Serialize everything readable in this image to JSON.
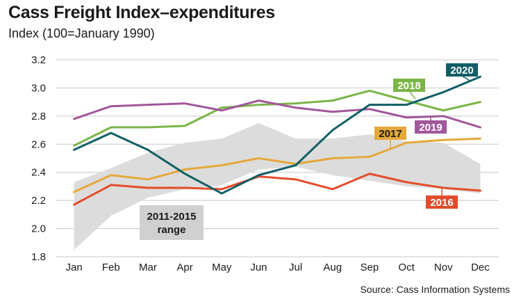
{
  "chart_data": {
    "type": "line",
    "title": "Cass Freight Index–expenditures",
    "subtitle": "Index (100=January 1990)",
    "source": "Source: Cass Information Systems",
    "categories": [
      "Jan",
      "Feb",
      "Mar",
      "Apr",
      "May",
      "Jun",
      "Jul",
      "Aug",
      "Sep",
      "Oct",
      "Nov",
      "Dec"
    ],
    "y_ticks": [
      "1.8",
      "2.0",
      "2.2",
      "2.4",
      "2.6",
      "2.8",
      "3.0",
      "3.2"
    ],
    "ylim": [
      1.8,
      3.2
    ],
    "grid": true,
    "range_band": {
      "label_line1": "2011-2015",
      "label_line2": "range",
      "lower": [
        1.85,
        2.09,
        2.22,
        2.28,
        2.31,
        2.42,
        2.44,
        2.38,
        2.34,
        2.3,
        2.28,
        2.25
      ],
      "upper": [
        2.33,
        2.43,
        2.54,
        2.61,
        2.64,
        2.75,
        2.64,
        2.64,
        2.67,
        2.62,
        2.61,
        2.46
      ],
      "color": "#dcdcdc"
    },
    "series": [
      {
        "name": "2016",
        "color": "#e34c2a",
        "values": [
          2.17,
          2.31,
          2.29,
          2.29,
          2.28,
          2.37,
          2.35,
          2.28,
          2.39,
          2.33,
          2.29,
          2.27
        ]
      },
      {
        "name": "2017",
        "color": "#e5a83b",
        "values": [
          2.26,
          2.38,
          2.35,
          2.42,
          2.45,
          2.5,
          2.46,
          2.5,
          2.51,
          2.61,
          2.63,
          2.64
        ]
      },
      {
        "name": "2018",
        "color": "#7bb547",
        "values": [
          2.59,
          2.72,
          2.72,
          2.73,
          2.86,
          2.88,
          2.89,
          2.91,
          2.98,
          2.91,
          2.84,
          2.9
        ]
      },
      {
        "name": "2019",
        "color": "#a0579a",
        "values": [
          2.78,
          2.87,
          2.88,
          2.89,
          2.84,
          2.91,
          2.86,
          2.83,
          2.85,
          2.79,
          2.8,
          2.72
        ]
      },
      {
        "name": "2020",
        "color": "#105f66",
        "values": [
          2.56,
          2.68,
          2.56,
          2.39,
          2.25,
          2.38,
          2.45,
          2.7,
          2.88,
          2.88,
          2.97,
          3.08
        ]
      }
    ]
  }
}
